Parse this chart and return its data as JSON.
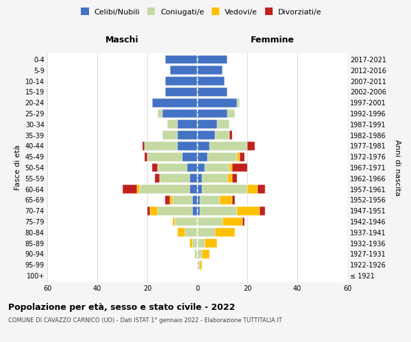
{
  "age_groups": [
    "100+",
    "95-99",
    "90-94",
    "85-89",
    "80-84",
    "75-79",
    "70-74",
    "65-69",
    "60-64",
    "55-59",
    "50-54",
    "45-49",
    "40-44",
    "35-39",
    "30-34",
    "25-29",
    "20-24",
    "15-19",
    "10-14",
    "5-9",
    "0-4"
  ],
  "birth_years": [
    "≤ 1921",
    "1922-1926",
    "1927-1931",
    "1932-1936",
    "1937-1941",
    "1942-1946",
    "1947-1951",
    "1952-1956",
    "1957-1961",
    "1962-1966",
    "1967-1971",
    "1972-1976",
    "1977-1981",
    "1982-1986",
    "1987-1991",
    "1992-1996",
    "1997-2001",
    "2002-2006",
    "2007-2011",
    "2012-2016",
    "2017-2021"
  ],
  "males": {
    "celibi": [
      0,
      0,
      0,
      0,
      0,
      0,
      2,
      2,
      3,
      3,
      4,
      6,
      8,
      8,
      8,
      14,
      18,
      13,
      13,
      11,
      13
    ],
    "coniugati": [
      0,
      0,
      1,
      2,
      5,
      9,
      14,
      8,
      20,
      12,
      12,
      14,
      13,
      6,
      4,
      2,
      0,
      0,
      0,
      0,
      0
    ],
    "vedovi": [
      0,
      0,
      0,
      1,
      3,
      1,
      3,
      1,
      1,
      0,
      0,
      0,
      0,
      0,
      0,
      0,
      0,
      0,
      0,
      0,
      0
    ],
    "divorziati": [
      0,
      0,
      0,
      0,
      0,
      0,
      1,
      2,
      6,
      2,
      2,
      1,
      1,
      0,
      0,
      0,
      0,
      0,
      0,
      0,
      0
    ]
  },
  "females": {
    "nubili": [
      0,
      0,
      0,
      0,
      0,
      0,
      1,
      1,
      2,
      2,
      3,
      4,
      5,
      7,
      8,
      12,
      16,
      12,
      11,
      10,
      12
    ],
    "coniugate": [
      0,
      1,
      2,
      3,
      7,
      10,
      15,
      8,
      18,
      10,
      10,
      12,
      15,
      6,
      5,
      3,
      1,
      0,
      0,
      0,
      0
    ],
    "vedove": [
      0,
      1,
      3,
      5,
      8,
      8,
      9,
      5,
      4,
      2,
      1,
      1,
      0,
      0,
      0,
      0,
      0,
      0,
      0,
      0,
      0
    ],
    "divorziate": [
      0,
      0,
      0,
      0,
      0,
      1,
      2,
      1,
      3,
      2,
      6,
      2,
      3,
      1,
      0,
      0,
      0,
      0,
      0,
      0,
      0
    ]
  },
  "colors": {
    "celibi": "#4472C4",
    "coniugati": "#C5D9A3",
    "vedovi": "#FFC000",
    "divorziati": "#C0211F"
  },
  "xlim": 60,
  "title": "Popolazione per età, sesso e stato civile - 2022",
  "subtitle": "COMUNE DI CAVAZZO CARNICO (UD) - Dati ISTAT 1° gennaio 2022 - Elaborazione TUTTITALIA.IT",
  "xlabel_left": "Maschi",
  "xlabel_right": "Femmine",
  "ylabel_left": "Fasce di età",
  "ylabel_right": "Anni di nascita",
  "legend_labels": [
    "Celibi/Nubili",
    "Coniugati/e",
    "Vedovi/e",
    "Divorziati/e"
  ],
  "bg_color": "#f5f5f5",
  "plot_bg_color": "#ffffff"
}
